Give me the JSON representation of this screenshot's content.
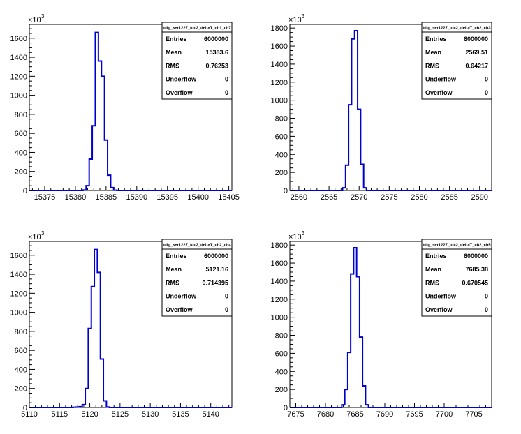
{
  "chart_data": [
    {
      "type": "bar",
      "title": "",
      "exponent_label": "×10",
      "exponent_power": "3",
      "xlim": [
        15372.5,
        15405.5
      ],
      "ylim": [
        0,
        1745
      ],
      "xticks": [
        15375,
        15380,
        15385,
        15390,
        15395,
        15400,
        15405
      ],
      "xtick_labels": [
        "15375",
        "15380",
        "15385",
        "15390",
        "15395",
        "15400",
        "15405"
      ],
      "yticks": [
        0,
        200,
        400,
        600,
        800,
        1000,
        1200,
        1400,
        1600
      ],
      "ytick_labels": [
        "0",
        "200",
        "400",
        "600",
        "800",
        "1000",
        "1200",
        "1400",
        "1600"
      ],
      "bin_width": 0.5,
      "bins": [
        {
          "x": 15381.5,
          "value": 5
        },
        {
          "x": 15382.0,
          "value": 50
        },
        {
          "x": 15382.5,
          "value": 330
        },
        {
          "x": 15383.0,
          "value": 680
        },
        {
          "x": 15383.5,
          "value": 1660
        },
        {
          "x": 15384.0,
          "value": 1360
        },
        {
          "x": 15384.5,
          "value": 1200
        },
        {
          "x": 15385.0,
          "value": 530
        },
        {
          "x": 15385.5,
          "value": 160
        },
        {
          "x": 15386.0,
          "value": 30
        },
        {
          "x": 15386.5,
          "value": 3
        }
      ],
      "stats": {
        "name": "tdig_ser1227_tdc2_deltaT_ch1_ch7",
        "rows": [
          {
            "label": "Entries",
            "value": "6000000"
          },
          {
            "label": "Mean",
            "value": "15383.6"
          },
          {
            "label": "RMS",
            "value": "0.76253"
          },
          {
            "label": "Underflow",
            "value": "0"
          },
          {
            "label": "Overflow",
            "value": "0"
          }
        ]
      }
    },
    {
      "type": "bar",
      "title": "",
      "exponent_label": "×10",
      "exponent_power": "3",
      "xlim": [
        2558.5,
        2592
      ],
      "ylim": [
        0,
        1840
      ],
      "xticks": [
        2560,
        2565,
        2570,
        2575,
        2580,
        2585,
        2590
      ],
      "xtick_labels": [
        "2560",
        "2565",
        "2570",
        "2575",
        "2580",
        "2585",
        "2590"
      ],
      "yticks": [
        0,
        200,
        400,
        600,
        800,
        1000,
        1200,
        1400,
        1600,
        1800
      ],
      "ytick_labels": [
        "0",
        "200",
        "400",
        "600",
        "800",
        "1000",
        "1200",
        "1400",
        "1600",
        "1800"
      ],
      "bin_width": 0.5,
      "bins": [
        {
          "x": 2567.5,
          "value": 30
        },
        {
          "x": 2568.0,
          "value": 280
        },
        {
          "x": 2568.5,
          "value": 950
        },
        {
          "x": 2569.0,
          "value": 1680
        },
        {
          "x": 2569.5,
          "value": 1770
        },
        {
          "x": 2570.0,
          "value": 900
        },
        {
          "x": 2570.5,
          "value": 290
        },
        {
          "x": 2571.0,
          "value": 30
        }
      ],
      "stats": {
        "name": "tdig_ser1227_tdc2_deltaT_ch2_ch3",
        "rows": [
          {
            "label": "Entries",
            "value": "6000000"
          },
          {
            "label": "Mean",
            "value": "2569.51"
          },
          {
            "label": "RMS",
            "value": "0.64217"
          },
          {
            "label": "Underflow",
            "value": "0"
          },
          {
            "label": "Overflow",
            "value": "0"
          }
        ]
      }
    },
    {
      "type": "bar",
      "title": "",
      "exponent_label": "×10",
      "exponent_power": "3",
      "xlim": [
        5110,
        5143.5
      ],
      "ylim": [
        0,
        1745
      ],
      "xticks": [
        5110,
        5115,
        5120,
        5125,
        5130,
        5135,
        5140
      ],
      "xtick_labels": [
        "5110",
        "5115",
        "5120",
        "5125",
        "5130",
        "5135",
        "5140"
      ],
      "yticks": [
        0,
        200,
        400,
        600,
        800,
        1000,
        1200,
        1400,
        1600
      ],
      "ytick_labels": [
        "0",
        "200",
        "400",
        "600",
        "800",
        "1000",
        "1200",
        "1400",
        "1600"
      ],
      "bin_width": 0.5,
      "bins": [
        {
          "x": 5117.5,
          "value": 3
        },
        {
          "x": 5118.0,
          "value": 5
        },
        {
          "x": 5118.5,
          "value": 8
        },
        {
          "x": 5119.0,
          "value": 30
        },
        {
          "x": 5119.5,
          "value": 200
        },
        {
          "x": 5120.0,
          "value": 830
        },
        {
          "x": 5120.5,
          "value": 1270
        },
        {
          "x": 5121.0,
          "value": 1660
        },
        {
          "x": 5121.5,
          "value": 1420
        },
        {
          "x": 5122.0,
          "value": 510
        },
        {
          "x": 5122.5,
          "value": 70
        },
        {
          "x": 5123.0,
          "value": 5
        }
      ],
      "stats": {
        "name": "tdig_ser1227_tdc2_deltaT_ch2_ch4",
        "rows": [
          {
            "label": "Entries",
            "value": "6000000"
          },
          {
            "label": "Mean",
            "value": "5121.16"
          },
          {
            "label": "RMS",
            "value": "0.714395"
          },
          {
            "label": "Underflow",
            "value": "0"
          },
          {
            "label": "Overflow",
            "value": "0"
          }
        ]
      }
    },
    {
      "type": "bar",
      "title": "",
      "exponent_label": "×10",
      "exponent_power": "3",
      "xlim": [
        7674,
        7708
      ],
      "ylim": [
        0,
        1840
      ],
      "xticks": [
        7675,
        7680,
        7685,
        7690,
        7695,
        7700,
        7705
      ],
      "xtick_labels": [
        "7675",
        "7680",
        "7685",
        "7690",
        "7695",
        "7700",
        "7705"
      ],
      "yticks": [
        0,
        200,
        400,
        600,
        800,
        1000,
        1200,
        1400,
        1600,
        1800
      ],
      "ytick_labels": [
        "0",
        "200",
        "400",
        "600",
        "800",
        "1000",
        "1200",
        "1400",
        "1600",
        "1800"
      ],
      "bin_width": 0.5,
      "bins": [
        {
          "x": 7683.0,
          "value": 30
        },
        {
          "x": 7683.5,
          "value": 200
        },
        {
          "x": 7684.0,
          "value": 610
        },
        {
          "x": 7684.5,
          "value": 1480
        },
        {
          "x": 7685.0,
          "value": 1770
        },
        {
          "x": 7685.5,
          "value": 1450
        },
        {
          "x": 7686.0,
          "value": 780
        },
        {
          "x": 7686.5,
          "value": 240
        },
        {
          "x": 7687.0,
          "value": 30
        }
      ],
      "stats": {
        "name": "tdig_ser1227_tdc2_deltaT_ch2_ch5",
        "rows": [
          {
            "label": "Entries",
            "value": "6000000"
          },
          {
            "label": "Mean",
            "value": "7685.38"
          },
          {
            "label": "RMS",
            "value": "0.670545"
          },
          {
            "label": "Underflow",
            "value": "0"
          },
          {
            "label": "Overflow",
            "value": "0"
          }
        ]
      }
    }
  ],
  "colors": {
    "histogram_line": "#0000cc",
    "axis": "#000000",
    "background": "#ffffff"
  }
}
